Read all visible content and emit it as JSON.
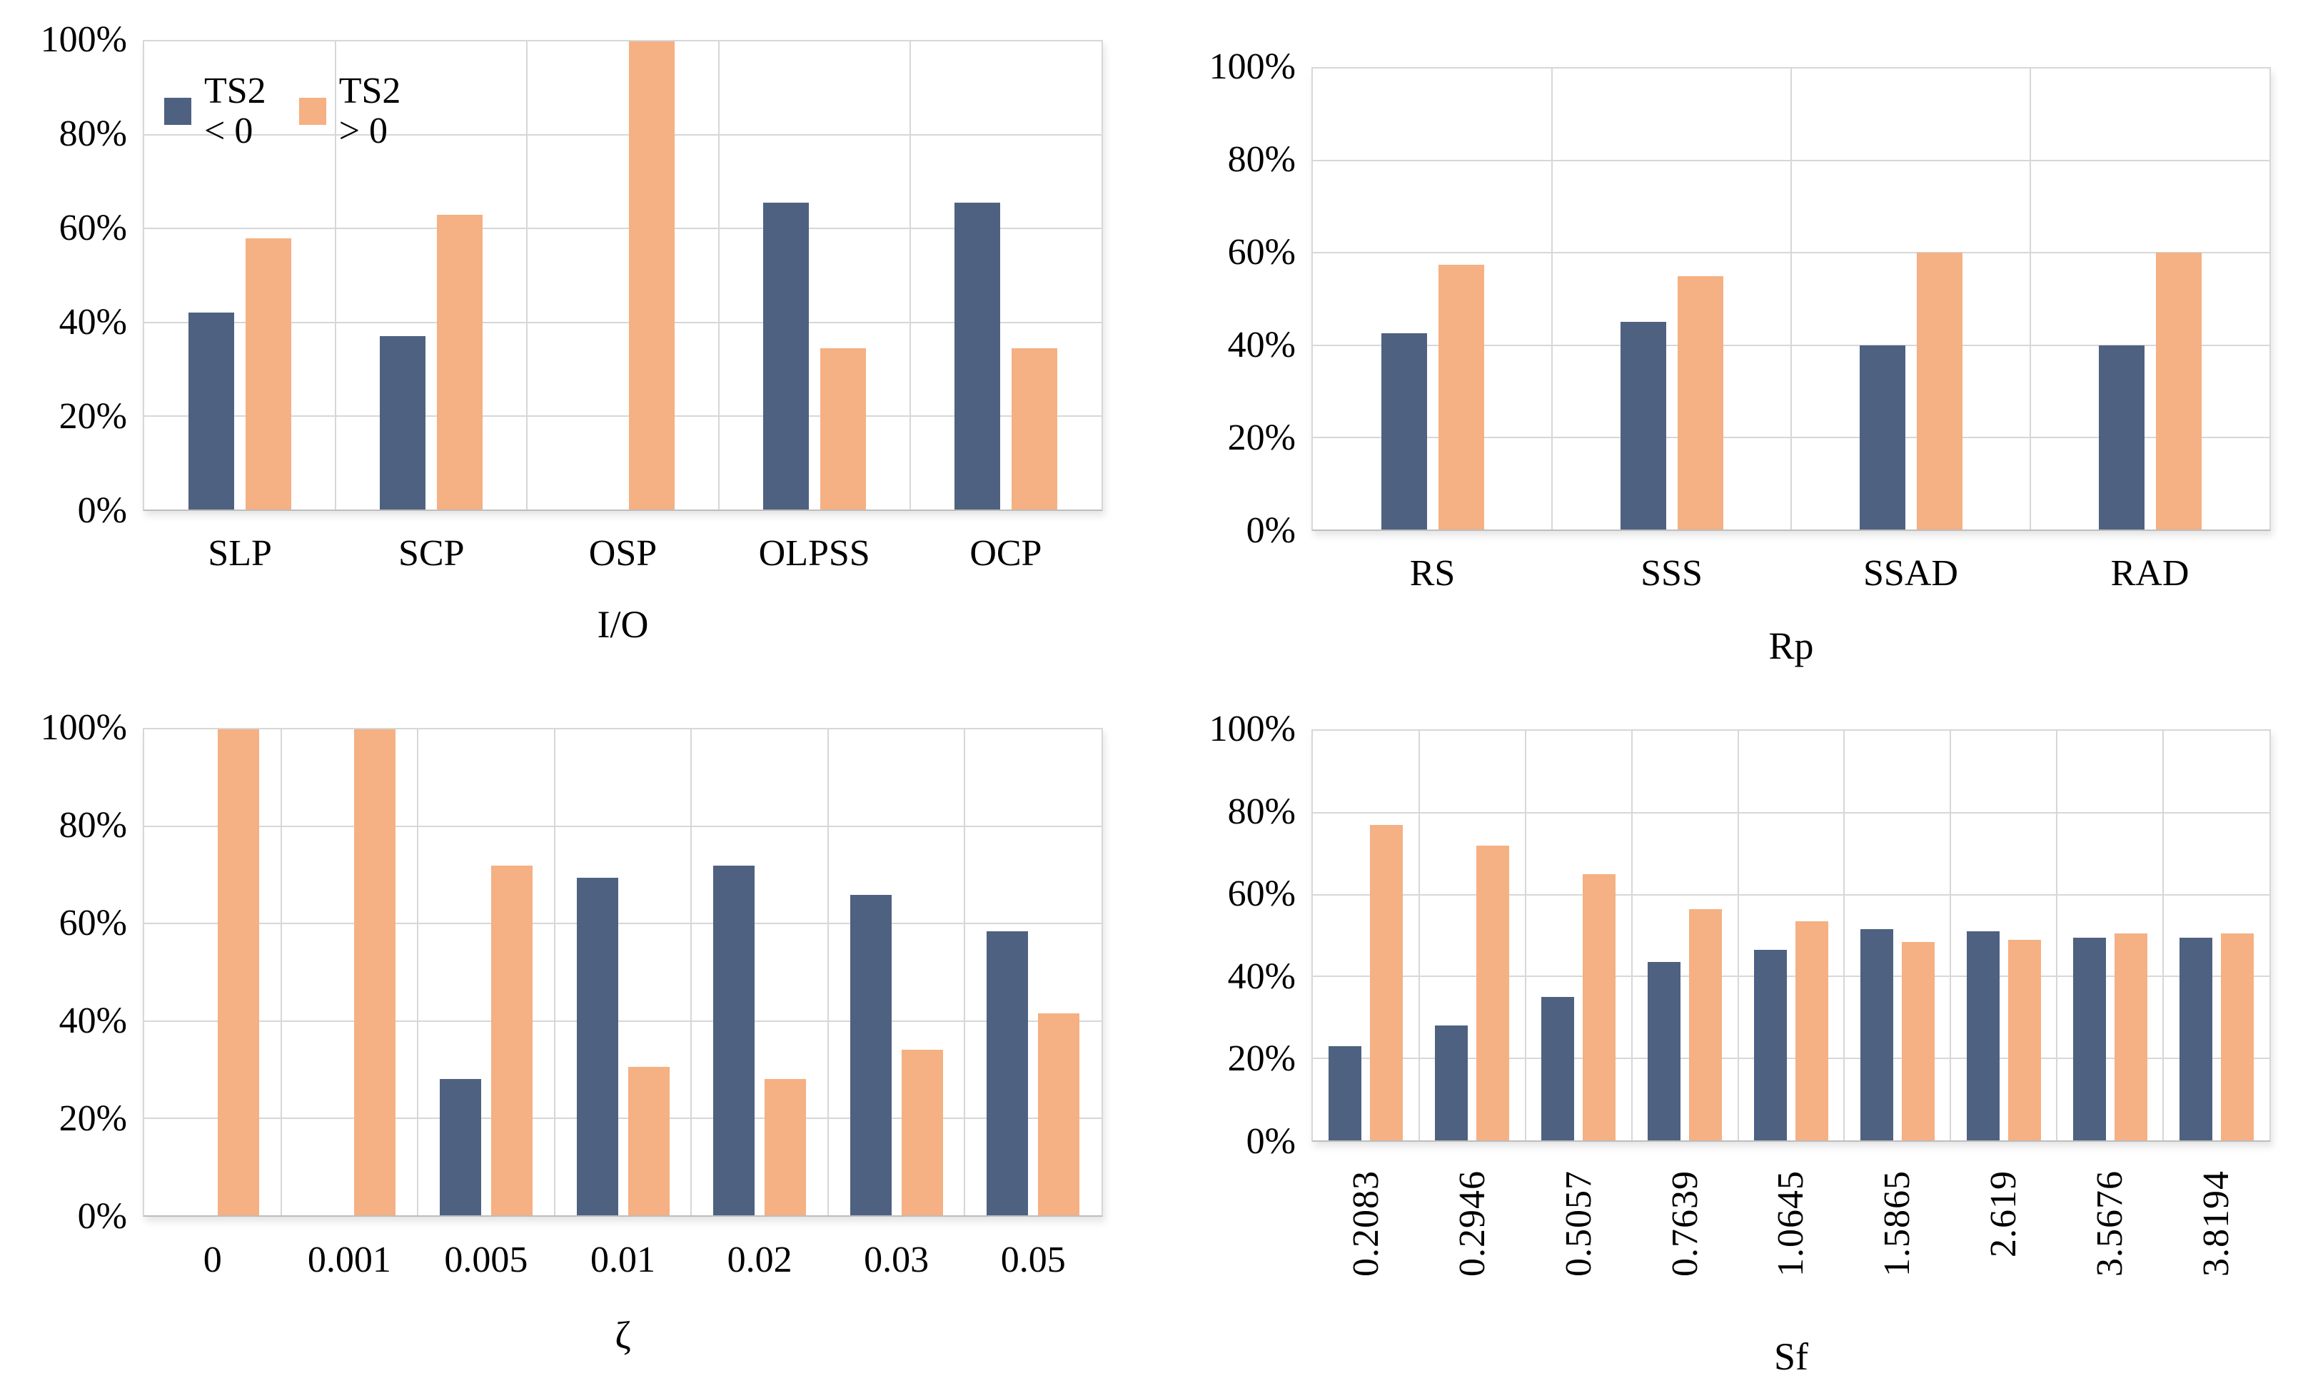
{
  "figure": {
    "background": "#FFFFFF",
    "text_color": "#000000",
    "grid_color": "#D7D7D7",
    "axis_line_color": "#BDBDBD"
  },
  "legend": {
    "items": [
      {
        "label": "TS2 < 0",
        "color": "#4E6180"
      },
      {
        "label": "TS2 > 0",
        "color": "#F5B083"
      }
    ]
  },
  "chart_data": [
    {
      "id": "io",
      "type": "bar",
      "xlabel": "I/O",
      "ylabel": "",
      "ylim": [
        0,
        100
      ],
      "grid": true,
      "legend": {
        "show": true,
        "position": "top-left-inside"
      },
      "yticks": [
        "0%",
        "20%",
        "40%",
        "60%",
        "80%",
        "100%"
      ],
      "categories": [
        "SLP",
        "SCP",
        "OSP",
        "OLPSS",
        "OCP"
      ],
      "series": [
        {
          "name": "TS2 < 0",
          "color": "#4E6180",
          "values": [
            42,
            37,
            0,
            65.5,
            65.5
          ]
        },
        {
          "name": "TS2 > 0",
          "color": "#F5B083",
          "values": [
            58,
            63,
            100,
            34.5,
            34.5
          ]
        }
      ],
      "x_labels_rotated": false
    },
    {
      "id": "rp",
      "type": "bar",
      "xlabel": "Rp",
      "ylabel": "",
      "ylim": [
        0,
        100
      ],
      "grid": true,
      "legend": {
        "show": false
      },
      "yticks": [
        "0%",
        "20%",
        "40%",
        "60%",
        "80%",
        "100%"
      ],
      "categories": [
        "RS",
        "SSS",
        "SSAD",
        "RAD"
      ],
      "series": [
        {
          "name": "TS2 < 0",
          "color": "#4E6180",
          "values": [
            42.5,
            45,
            40,
            40
          ]
        },
        {
          "name": "TS2 > 0",
          "color": "#F5B083",
          "values": [
            57.5,
            55,
            60,
            60
          ]
        }
      ],
      "x_labels_rotated": false
    },
    {
      "id": "zeta",
      "type": "bar",
      "xlabel": "ζ",
      "ylabel": "",
      "ylim": [
        0,
        100
      ],
      "grid": true,
      "legend": {
        "show": false
      },
      "yticks": [
        "0%",
        "20%",
        "40%",
        "60%",
        "80%",
        "100%"
      ],
      "categories": [
        "0",
        "0.001",
        "0.005",
        "0.01",
        "0.02",
        "0.03",
        "0.05"
      ],
      "series": [
        {
          "name": "TS2 < 0",
          "color": "#4E6180",
          "values": [
            0,
            0,
            28,
            69.5,
            72,
            66,
            58.5
          ]
        },
        {
          "name": "TS2 > 0",
          "color": "#F5B083",
          "values": [
            100,
            100,
            72,
            30.5,
            28,
            34,
            41.5
          ]
        }
      ],
      "x_labels_rotated": false
    },
    {
      "id": "sf",
      "type": "bar",
      "xlabel": "Sf",
      "ylabel": "",
      "ylim": [
        0,
        100
      ],
      "grid": true,
      "legend": {
        "show": false
      },
      "yticks": [
        "0%",
        "20%",
        "40%",
        "60%",
        "80%",
        "100%"
      ],
      "categories": [
        "0.2083",
        "0.2946",
        "0.5057",
        "0.7639",
        "1.0645",
        "1.5865",
        "2.619",
        "3.5676",
        "3.8194"
      ],
      "series": [
        {
          "name": "TS2 < 0",
          "color": "#4E6180",
          "values": [
            23,
            28,
            35,
            43.5,
            46.5,
            51.5,
            51,
            49.5,
            49.5
          ]
        },
        {
          "name": "TS2 > 0",
          "color": "#F5B083",
          "values": [
            77,
            72,
            65,
            56.5,
            53.5,
            48.5,
            49,
            50.5,
            50.5
          ]
        }
      ],
      "x_labels_rotated": true
    }
  ]
}
